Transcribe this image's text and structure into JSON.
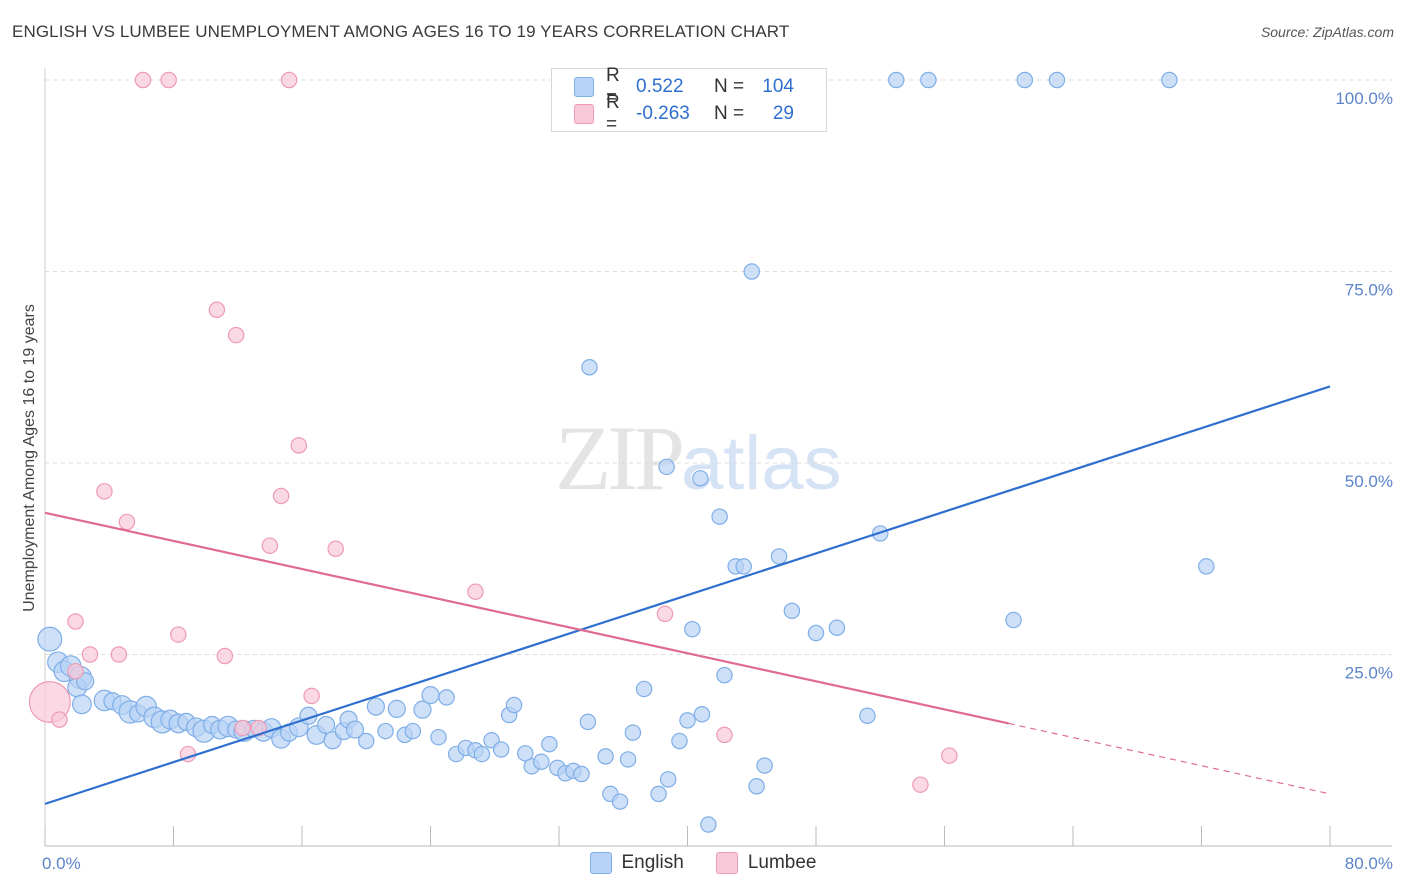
{
  "title": "ENGLISH VS LUMBEE UNEMPLOYMENT AMONG AGES 16 TO 19 YEARS CORRELATION CHART",
  "source": "Source: ZipAtlas.com",
  "watermark": {
    "zip": "ZIP",
    "atlas": "atlas"
  },
  "legend_top": [
    {
      "r_label": "R =",
      "r_value": "0.522",
      "n_label": "N =",
      "n_value": "104"
    },
    {
      "r_label": "R =",
      "r_value": "-0.263",
      "n_label": "N =",
      "n_value": "29"
    }
  ],
  "legend_bottom": [
    {
      "label": "English"
    },
    {
      "label": "Lumbee"
    }
  ],
  "colors": {
    "english_fill": "#b8d3f5",
    "english_stroke": "#7faee8",
    "english_line": "#2f6fd0",
    "lumbee_fill": "#f8c9d8",
    "lumbee_stroke": "#ee9ab5",
    "lumbee_line": "#e06a94",
    "grid": "#dddddd",
    "tick_label": "#5b84c9"
  },
  "chart_data": {
    "type": "scatter",
    "xlabel": "",
    "ylabel": "Unemployment Among Ages 16 to 19 years",
    "xlim": [
      0,
      80
    ],
    "ylim": [
      0,
      100
    ],
    "x_tick_labels": [
      "0.0%",
      "80.0%"
    ],
    "y_ticks": [
      25,
      50,
      75,
      100
    ],
    "y_tick_labels": [
      "25.0%",
      "50.0%",
      "75.0%",
      "100.0%"
    ],
    "grid": true,
    "legend_position": "top-center",
    "series": [
      {
        "name": "English",
        "trend": {
          "x": [
            0,
            80
          ],
          "y": [
            5.5,
            60.0
          ]
        },
        "points": [
          [
            0.3,
            27.0,
            1.4
          ],
          [
            0.8,
            24.0,
            1.2
          ],
          [
            1.2,
            22.8,
            1.2
          ],
          [
            1.6,
            23.5,
            1.2
          ],
          [
            2.2,
            22.0,
            1.3
          ],
          [
            2.0,
            20.7,
            1.1
          ],
          [
            2.5,
            21.5,
            1.0
          ],
          [
            2.3,
            18.5,
            1.1
          ],
          [
            3.7,
            19.0,
            1.2
          ],
          [
            4.2,
            18.9,
            1.0
          ],
          [
            4.8,
            18.4,
            1.1
          ],
          [
            5.3,
            17.5,
            1.3
          ],
          [
            5.8,
            17.3,
            1.0
          ],
          [
            6.3,
            18.2,
            1.2
          ],
          [
            6.8,
            16.8,
            1.2
          ],
          [
            7.3,
            16.2,
            1.3
          ],
          [
            7.8,
            16.5,
            1.1
          ],
          [
            8.3,
            16.0,
            1.1
          ],
          [
            8.8,
            16.2,
            1.0
          ],
          [
            9.4,
            15.5,
            1.1
          ],
          [
            9.9,
            15.0,
            1.3
          ],
          [
            10.4,
            15.8,
            1.0
          ],
          [
            10.9,
            15.2,
            1.1
          ],
          [
            11.4,
            15.6,
            1.2
          ],
          [
            11.9,
            15.2,
            1.0
          ],
          [
            12.4,
            15.0,
            1.2
          ],
          [
            13.0,
            15.3,
            1.0
          ],
          [
            13.6,
            14.9,
            1.1
          ],
          [
            14.1,
            15.4,
            1.1
          ],
          [
            14.7,
            14.0,
            1.1
          ],
          [
            15.2,
            14.8,
            1.0
          ],
          [
            15.8,
            15.5,
            1.1
          ],
          [
            16.4,
            17.0,
            1.0
          ],
          [
            16.9,
            14.5,
            1.1
          ],
          [
            17.5,
            15.8,
            1.0
          ],
          [
            17.9,
            13.8,
            1.0
          ],
          [
            18.6,
            15.0,
            1.0
          ],
          [
            18.9,
            16.5,
            1.0
          ],
          [
            19.3,
            15.2,
            1.0
          ],
          [
            20.0,
            13.7,
            0.9
          ],
          [
            20.6,
            18.2,
            1.0
          ],
          [
            21.2,
            15.0,
            0.9
          ],
          [
            21.9,
            17.9,
            1.0
          ],
          [
            22.4,
            14.5,
            0.9
          ],
          [
            22.9,
            15.0,
            0.9
          ],
          [
            23.5,
            17.8,
            1.0
          ],
          [
            24.0,
            19.7,
            1.0
          ],
          [
            24.5,
            14.2,
            0.9
          ],
          [
            25.0,
            19.4,
            0.9
          ],
          [
            25.6,
            12.0,
            0.9
          ],
          [
            26.2,
            12.8,
            0.9
          ],
          [
            26.8,
            12.5,
            0.9
          ],
          [
            27.2,
            12.0,
            0.9
          ],
          [
            27.8,
            13.8,
            0.9
          ],
          [
            28.4,
            12.6,
            0.9
          ],
          [
            28.9,
            17.1,
            0.9
          ],
          [
            29.2,
            18.4,
            0.9
          ],
          [
            29.9,
            12.1,
            0.9
          ],
          [
            30.3,
            10.4,
            0.9
          ],
          [
            30.9,
            11.0,
            0.9
          ],
          [
            31.4,
            13.3,
            0.9
          ],
          [
            31.9,
            10.2,
            0.9
          ],
          [
            32.4,
            9.5,
            0.9
          ],
          [
            32.9,
            9.8,
            0.9
          ],
          [
            33.4,
            9.4,
            0.9
          ],
          [
            33.8,
            16.2,
            0.9
          ],
          [
            34.9,
            11.7,
            0.9
          ],
          [
            35.2,
            6.8,
            0.9
          ],
          [
            35.8,
            5.8,
            0.9
          ],
          [
            36.3,
            11.3,
            0.9
          ],
          [
            36.6,
            14.8,
            0.9
          ],
          [
            37.3,
            20.5,
            0.9
          ],
          [
            38.2,
            6.8,
            0.9
          ],
          [
            38.8,
            8.7,
            0.9
          ],
          [
            39.5,
            13.7,
            0.9
          ],
          [
            40.0,
            16.4,
            0.9
          ],
          [
            40.9,
            17.2,
            0.9
          ],
          [
            41.3,
            2.8,
            0.9
          ],
          [
            42.3,
            22.3,
            0.9
          ],
          [
            42.0,
            43.0,
            0.9
          ],
          [
            43.0,
            36.5,
            0.9
          ],
          [
            43.5,
            36.5,
            0.9
          ],
          [
            44.3,
            7.8,
            0.9
          ],
          [
            44.8,
            10.5,
            0.9
          ],
          [
            45.7,
            37.8,
            0.9
          ],
          [
            46.5,
            30.7,
            0.9
          ],
          [
            48.0,
            27.8,
            0.9
          ],
          [
            49.3,
            28.5,
            0.9
          ],
          [
            38.7,
            49.5,
            0.9
          ],
          [
            40.8,
            48.0,
            0.9
          ],
          [
            40.3,
            28.3,
            0.9
          ],
          [
            33.9,
            62.5,
            0.9
          ],
          [
            44.0,
            75.0,
            0.9
          ],
          [
            51.2,
            17.0,
            0.9
          ],
          [
            52.0,
            40.8,
            0.9
          ],
          [
            60.3,
            29.5,
            0.9
          ],
          [
            72.3,
            36.5,
            0.9
          ],
          [
            46.0,
            100,
            0.9
          ],
          [
            53.0,
            100,
            0.9
          ],
          [
            55.0,
            100,
            0.9
          ],
          [
            61.0,
            100,
            0.9
          ],
          [
            63.0,
            100,
            0.9
          ],
          [
            70.0,
            100,
            0.9
          ]
        ]
      },
      {
        "name": "Lumbee",
        "trend": {
          "x": [
            0,
            60
          ],
          "y": [
            43.5,
            16.0
          ]
        },
        "trend_dashed": {
          "x": [
            60,
            80
          ],
          "y": [
            16.0,
            6.8
          ]
        },
        "points": [
          [
            0.3,
            18.8,
            2.4
          ],
          [
            0.9,
            16.5,
            0.9
          ],
          [
            1.9,
            22.8,
            0.9
          ],
          [
            1.9,
            29.3,
            0.9
          ],
          [
            2.8,
            25.0,
            0.9
          ],
          [
            3.7,
            46.3,
            0.9
          ],
          [
            4.6,
            25.0,
            0.9
          ],
          [
            5.1,
            42.3,
            0.9
          ],
          [
            6.1,
            100,
            0.9
          ],
          [
            7.7,
            100,
            0.9
          ],
          [
            8.3,
            27.6,
            0.9
          ],
          [
            8.9,
            12.0,
            0.9
          ],
          [
            10.7,
            70.0,
            0.9
          ],
          [
            11.2,
            24.8,
            0.9
          ],
          [
            11.9,
            66.7,
            0.9
          ],
          [
            12.3,
            15.4,
            0.9
          ],
          [
            13.3,
            15.4,
            0.9
          ],
          [
            14.0,
            39.2,
            0.9
          ],
          [
            14.7,
            45.7,
            0.9
          ],
          [
            15.2,
            100,
            0.9
          ],
          [
            15.8,
            52.3,
            0.9
          ],
          [
            16.6,
            19.6,
            0.9
          ],
          [
            18.1,
            38.8,
            0.9
          ],
          [
            26.8,
            33.2,
            0.9
          ],
          [
            38.6,
            30.3,
            0.9
          ],
          [
            42.3,
            14.5,
            0.9
          ],
          [
            54.5,
            8.0,
            0.9
          ],
          [
            56.3,
            11.8,
            0.9
          ]
        ]
      }
    ]
  }
}
